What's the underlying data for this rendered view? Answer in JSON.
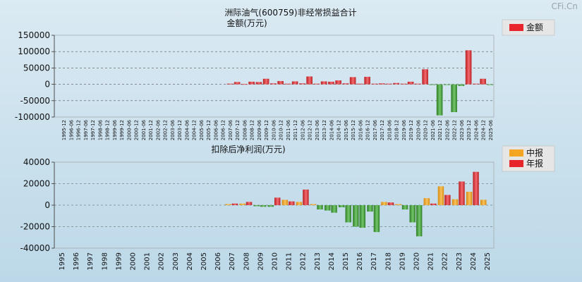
{
  "watermark": "CFi.Cn",
  "chart_data": [
    {
      "type": "bar",
      "title": "洲际油气(600759)非经常损益合计",
      "subtitle": "金额(万元)",
      "ylim": [
        -100000,
        150000
      ],
      "yticks": [
        150000,
        100000,
        50000,
        0,
        -50000,
        -100000
      ],
      "grid": true,
      "legend": "top-right",
      "series": [
        {
          "name": "金额",
          "color": "#e8252b"
        }
      ],
      "periods": [
        "1995-12",
        "1996-06",
        "1996-12",
        "1997-06",
        "1997-12",
        "1998-06",
        "1998-12",
        "1999-06",
        "1999-12",
        "2000-06",
        "2000-12",
        "2001-06",
        "2001-12",
        "2002-06",
        "2002-12",
        "2003-06",
        "2003-12",
        "2004-06",
        "2004-12",
        "2005-06",
        "2005-12",
        "2006-06",
        "2006-12",
        "2007-06",
        "2007-12",
        "2008-06",
        "2008-12",
        "2009-06",
        "2009-12",
        "2010-06",
        "2010-12",
        "2011-06",
        "2011-12",
        "2012-06",
        "2012-12",
        "2013-06",
        "2013-12",
        "2014-06",
        "2014-12",
        "2015-06",
        "2015-12",
        "2016-06",
        "2016-12",
        "2017-06",
        "2017-12",
        "2018-06",
        "2018-12",
        "2019-06",
        "2019-12",
        "2020-06",
        "2020-12",
        "2021-06",
        "2021-12",
        "2022-06",
        "2022-12",
        "2023-06",
        "2023-12",
        "2024-06",
        "2024-12",
        "2025-06"
      ],
      "values": [
        null,
        null,
        null,
        null,
        null,
        null,
        null,
        null,
        null,
        null,
        null,
        null,
        null,
        null,
        null,
        null,
        null,
        null,
        null,
        null,
        null,
        null,
        null,
        2000,
        7000,
        1000,
        8000,
        7000,
        17000,
        3000,
        10000,
        2000,
        9000,
        3000,
        24000,
        2000,
        9000,
        8000,
        12000,
        3000,
        22000,
        2000,
        23000,
        2000,
        3000,
        2000,
        4000,
        2000,
        8000,
        2000,
        46000,
        -2000,
        -95000,
        -2000,
        -85000,
        -5000,
        104000,
        2000,
        17000,
        -2000
      ]
    },
    {
      "type": "bar",
      "title": "扣除后净利润(万元)",
      "ylim": [
        -40000,
        40000
      ],
      "yticks": [
        40000,
        20000,
        0,
        -20000,
        -40000
      ],
      "grid": true,
      "legend": "top-right",
      "categories": [
        "1995",
        "1996",
        "1997",
        "1998",
        "1999",
        "2000",
        "2001",
        "2002",
        "2003",
        "2004",
        "2005",
        "2006",
        "2007",
        "2008",
        "2009",
        "2010",
        "2011",
        "2012",
        "2013",
        "2014",
        "2015",
        "2016",
        "2017",
        "2018",
        "2019",
        "2020",
        "2021",
        "2022",
        "2023",
        "2024",
        "2025"
      ],
      "series": [
        {
          "name": "中报",
          "color": "#f5a623",
          "values": [
            null,
            null,
            null,
            null,
            null,
            null,
            null,
            null,
            null,
            null,
            null,
            null,
            1000,
            1500,
            -1000,
            -1500,
            5000,
            3000,
            1000,
            -5000,
            -2000,
            -20000,
            -6000,
            3000,
            1000,
            -16000,
            6500,
            17500,
            5500,
            12500,
            5000
          ]
        },
        {
          "name": "年报",
          "color": "#e8252b",
          "values": [
            null,
            null,
            null,
            null,
            null,
            null,
            null,
            null,
            null,
            null,
            null,
            null,
            1500,
            3000,
            -1500,
            7000,
            3500,
            14500,
            -4000,
            -7000,
            -16000,
            -21000,
            -25000,
            2500,
            -4000,
            -29000,
            1500,
            9500,
            22000,
            31000,
            null
          ]
        }
      ]
    }
  ]
}
